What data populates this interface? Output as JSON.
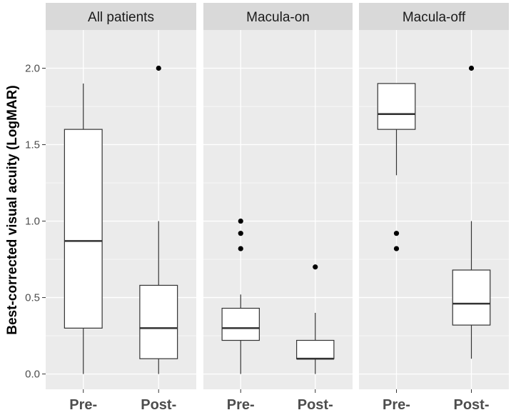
{
  "chart_data": {
    "type": "boxplot",
    "ylabel": "Best-corrected visual acuity (LogMAR)",
    "xlabel": "",
    "ylim": [
      -0.1,
      2.25
    ],
    "yticks": [
      0.0,
      0.5,
      1.0,
      1.5,
      2.0
    ],
    "ytick_labels": [
      "0.0",
      "0.5",
      "1.0",
      "1.5",
      "2.0"
    ],
    "categories": [
      "Pre-",
      "Post-"
    ],
    "grid": true,
    "colors": {
      "panel_bg": "#ebebeb",
      "strip_bg": "#d9d9d9",
      "grid": "#ffffff",
      "box_fill": "#ffffff",
      "box_line": "#333333",
      "point": "#000000"
    },
    "panels": [
      {
        "title": "All patients",
        "boxes": [
          {
            "category": "Pre-",
            "min": 0.0,
            "q1": 0.3,
            "median": 0.87,
            "q3": 1.6,
            "max": 1.9,
            "outliers": []
          },
          {
            "category": "Post-",
            "min": 0.0,
            "q1": 0.1,
            "median": 0.3,
            "q3": 0.58,
            "max": 1.0,
            "outliers": [
              2.0
            ]
          }
        ]
      },
      {
        "title": "Macula-on",
        "boxes": [
          {
            "category": "Pre-",
            "min": 0.0,
            "q1": 0.22,
            "median": 0.3,
            "q3": 0.43,
            "max": 0.52,
            "outliers": [
              0.82,
              0.92,
              1.0
            ]
          },
          {
            "category": "Post-",
            "min": 0.0,
            "q1": 0.1,
            "median": 0.1,
            "q3": 0.22,
            "max": 0.4,
            "outliers": [
              0.7
            ]
          }
        ]
      },
      {
        "title": "Macula-off",
        "boxes": [
          {
            "category": "Pre-",
            "min": 1.3,
            "q1": 1.6,
            "median": 1.7,
            "q3": 1.9,
            "max": 1.9,
            "outliers": [
              0.82,
              0.92
            ]
          },
          {
            "category": "Post-",
            "min": 0.1,
            "q1": 0.32,
            "median": 0.46,
            "q3": 0.68,
            "max": 1.0,
            "outliers": [
              2.0
            ]
          }
        ]
      }
    ]
  }
}
